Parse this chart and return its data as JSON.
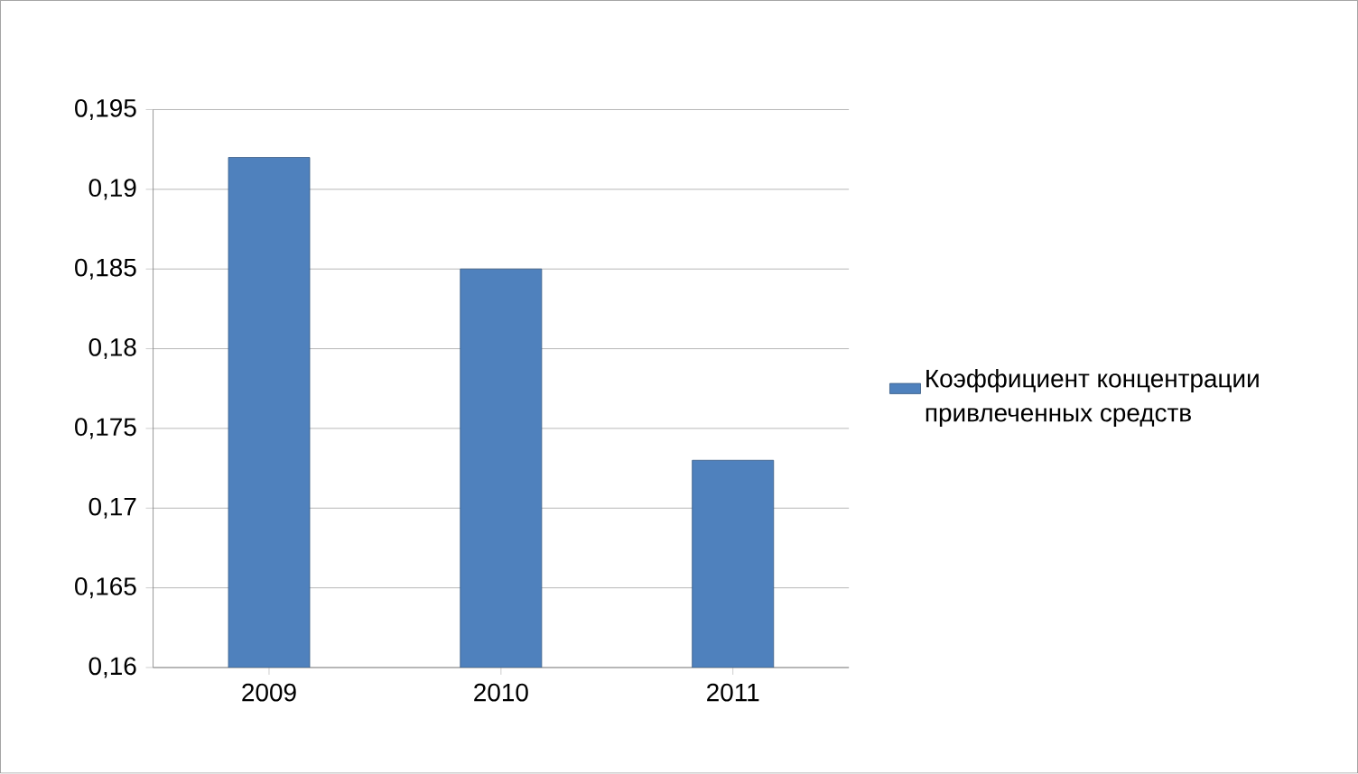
{
  "chart_data": {
    "type": "bar",
    "categories": [
      "2009",
      "2010",
      "2011"
    ],
    "series": [
      {
        "name": "Коэффициент концентрации привлеченных средств",
        "color": "#4f81bd",
        "values": [
          0.192,
          0.185,
          0.173
        ]
      }
    ],
    "ylim": [
      0.16,
      0.195
    ],
    "yticks": [
      {
        "value": 0.16,
        "label": "0,16"
      },
      {
        "value": 0.165,
        "label": "0,165"
      },
      {
        "value": 0.17,
        "label": "0,17"
      },
      {
        "value": 0.175,
        "label": "0,175"
      },
      {
        "value": 0.18,
        "label": "0,18"
      },
      {
        "value": 0.185,
        "label": "0,185"
      },
      {
        "value": 0.19,
        "label": "0,19"
      },
      {
        "value": 0.195,
        "label": "0,195"
      }
    ],
    "grid": "y",
    "legend": "right"
  }
}
